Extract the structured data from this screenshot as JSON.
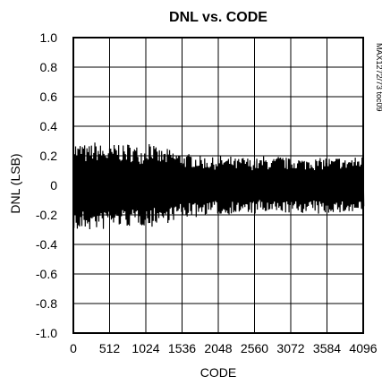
{
  "chart_data": {
    "type": "line",
    "title": "DNL vs. CODE",
    "xlabel": "CODE",
    "ylabel": "DNL (LSB)",
    "side_note": "MAX1272/73 toc09",
    "xlim": [
      0,
      4096
    ],
    "ylim": [
      -1.0,
      1.0
    ],
    "x_ticks": [
      0,
      512,
      1024,
      1536,
      2048,
      2560,
      3072,
      3584,
      4096
    ],
    "x_tick_labels": [
      "0",
      "512",
      "1024",
      "1536",
      "2048",
      "2560",
      "3072",
      "3584",
      "4096"
    ],
    "y_ticks": [
      1.0,
      0.8,
      0.6,
      0.4,
      0.2,
      0,
      -0.2,
      -0.4,
      -0.6,
      -0.8,
      -1.0
    ],
    "y_tick_labels": [
      "1.0",
      "0.8",
      "0.6",
      "0.4",
      "0.2",
      "0",
      "-0.2",
      "-0.4",
      "-0.6",
      "-0.8",
      "-1.0"
    ],
    "grid": true,
    "series": [
      {
        "color": "#000000",
        "x_step": 16,
        "x": [
          0,
          64,
          128,
          192,
          256,
          320,
          384,
          448,
          512,
          576,
          640,
          704,
          768,
          832,
          896,
          960,
          1024,
          1088,
          1152,
          1216,
          1280,
          1344,
          1408,
          1472,
          1536,
          1600,
          1664,
          1728,
          1792,
          1856,
          1920,
          1984,
          2048,
          2112,
          2176,
          2240,
          2304,
          2368,
          2432,
          2496,
          2560,
          2624,
          2688,
          2752,
          2816,
          2880,
          2944,
          3008,
          3072,
          3136,
          3200,
          3264,
          3328,
          3392,
          3456,
          3520,
          3584,
          3648,
          3712,
          3776,
          3840,
          3904,
          3968,
          4032,
          4095
        ],
        "upper_envelope": [
          0.32,
          0.28,
          0.3,
          0.26,
          0.29,
          0.3,
          0.28,
          0.27,
          0.26,
          0.28,
          0.3,
          0.27,
          0.29,
          0.28,
          0.27,
          0.26,
          0.27,
          0.34,
          0.26,
          0.25,
          0.24,
          0.25,
          0.24,
          0.23,
          0.22,
          0.21,
          0.22,
          0.21,
          0.2,
          0.2,
          0.19,
          0.19,
          0.2,
          0.2,
          0.19,
          0.2,
          0.18,
          0.19,
          0.2,
          0.18,
          0.19,
          0.18,
          0.2,
          0.19,
          0.18,
          0.2,
          0.2,
          0.19,
          0.18,
          0.2,
          0.19,
          0.18,
          0.2,
          0.19,
          0.18,
          0.19,
          0.2,
          0.18,
          0.19,
          0.2,
          0.18,
          0.2,
          0.19,
          0.2,
          0.2
        ],
        "lower_envelope": [
          -0.3,
          -0.34,
          -0.31,
          -0.3,
          -0.32,
          -0.3,
          -0.33,
          -0.28,
          -0.27,
          -0.3,
          -0.28,
          -0.29,
          -0.28,
          -0.3,
          -0.26,
          -0.28,
          -0.27,
          -0.3,
          -0.26,
          -0.25,
          -0.27,
          -0.25,
          -0.24,
          -0.22,
          -0.23,
          -0.22,
          -0.21,
          -0.22,
          -0.2,
          -0.2,
          -0.2,
          -0.19,
          -0.2,
          -0.22,
          -0.2,
          -0.19,
          -0.2,
          -0.19,
          -0.2,
          -0.19,
          -0.2,
          -0.18,
          -0.19,
          -0.2,
          -0.19,
          -0.2,
          -0.18,
          -0.19,
          -0.2,
          -0.19,
          -0.18,
          -0.2,
          -0.19,
          -0.18,
          -0.2,
          -0.19,
          -0.2,
          -0.18,
          -0.19,
          -0.2,
          -0.18,
          -0.2,
          -0.19,
          -0.18,
          -0.2
        ]
      }
    ]
  }
}
